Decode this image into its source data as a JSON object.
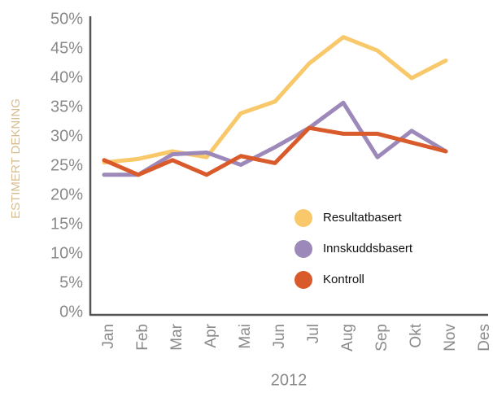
{
  "chart_data": {
    "type": "line",
    "y_label": "ESTIMERT DEKNING",
    "x_label": "2012",
    "categories": [
      "Jan",
      "Feb",
      "Mar",
      "Apr",
      "Mai",
      "Jun",
      "Jul",
      "Aug",
      "Sep",
      "Okt",
      "Nov",
      "Des"
    ],
    "series": [
      {
        "name": "Resultatbasert",
        "color": "#f8c86b",
        "values": [
          25.6,
          26.2,
          27.5,
          26.5,
          34,
          36,
          42.5,
          47,
          44.7,
          40,
          43,
          null
        ]
      },
      {
        "name": "Innskuddsbasert",
        "color": "#9c88b9",
        "values": [
          23.5,
          23.5,
          27,
          27.3,
          25.2,
          28.2,
          31.5,
          35.8,
          26.5,
          31,
          27.5,
          null
        ]
      },
      {
        "name": "Kontroll",
        "color": "#d95a2b",
        "values": [
          26,
          23.5,
          26,
          23.5,
          26.7,
          25.5,
          31.5,
          30.5,
          30.5,
          29,
          27.5,
          null
        ]
      }
    ],
    "ylim": [
      0,
      50
    ],
    "yticks": [
      {
        "value": 0,
        "label": "0%"
      },
      {
        "value": 5,
        "label": "5%"
      },
      {
        "value": 10,
        "label": "10%"
      },
      {
        "value": 15,
        "label": "15%"
      },
      {
        "value": 20,
        "label": "20%"
      },
      {
        "value": 25,
        "label": "25%"
      },
      {
        "value": 30,
        "label": "30%"
      },
      {
        "value": 35,
        "label": "35%"
      },
      {
        "value": 40,
        "label": "40%"
      },
      {
        "value": 45,
        "label": "45%"
      },
      {
        "value": 50,
        "label": "50%"
      }
    ],
    "grid": false,
    "legend": "right"
  }
}
